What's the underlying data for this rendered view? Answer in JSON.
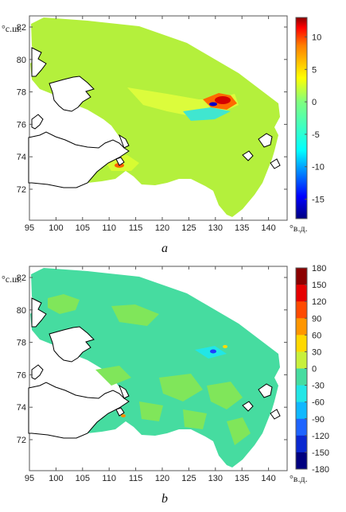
{
  "figure": {
    "units": {
      "lat": "°с.ш.",
      "lon": "°в.д."
    },
    "colors": {
      "land": "#ffffff",
      "coast": "#000000",
      "frame": "#555555"
    }
  },
  "panels": [
    {
      "letter": "a",
      "x_ticks": [
        "95",
        "100",
        "105",
        "110",
        "115",
        "120",
        "125",
        "130",
        "135",
        "140"
      ],
      "y_ticks": [
        "82",
        "80",
        "78",
        "76",
        "74",
        "72"
      ],
      "colorbar": {
        "ticks": [
          "10",
          "5",
          "0",
          "-5",
          "-10",
          "-15"
        ],
        "range": [
          -18,
          13
        ],
        "colormap": "jet-continuous"
      }
    },
    {
      "letter": "b",
      "x_ticks": [
        "95",
        "100",
        "105",
        "110",
        "115",
        "120",
        "125",
        "130",
        "135",
        "140"
      ],
      "y_ticks": [
        "82",
        "80",
        "78",
        "76",
        "74",
        "72"
      ],
      "colorbar": {
        "ticks": [
          "180",
          "150",
          "120",
          "90",
          "60",
          "30",
          "0",
          "-30",
          "-60",
          "-90",
          "-120",
          "-150",
          "-180"
        ],
        "range": [
          -180,
          180
        ],
        "colormap": "jet-discrete-12"
      }
    }
  ]
}
